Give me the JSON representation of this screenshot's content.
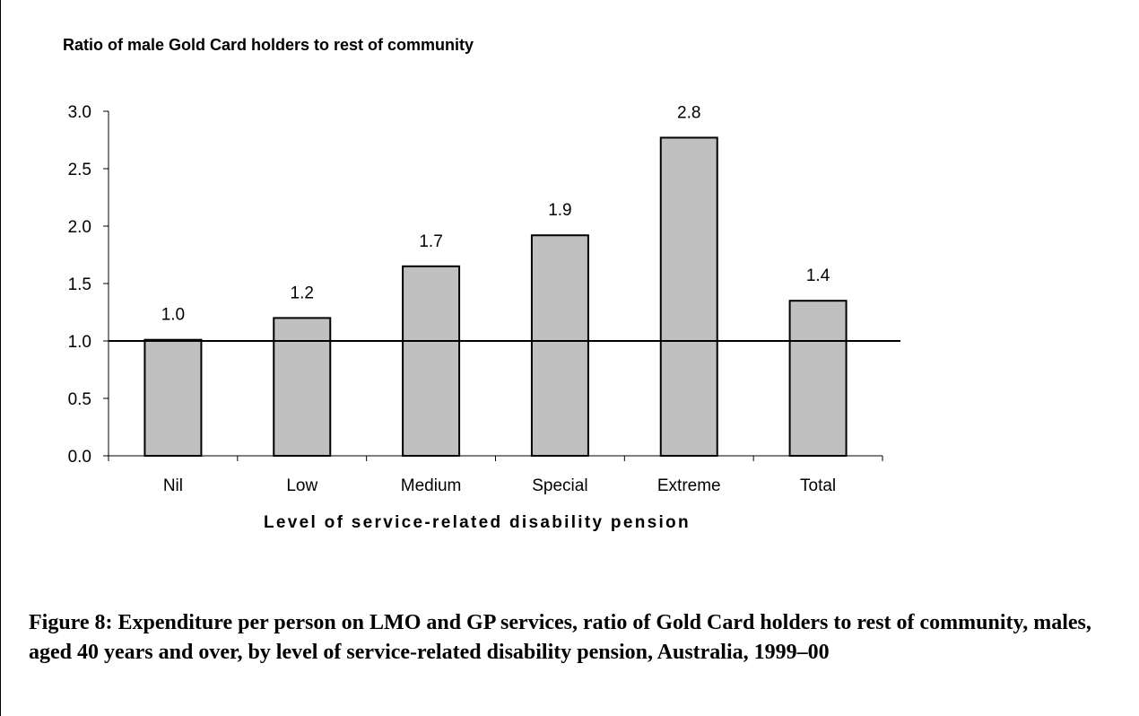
{
  "chart_data": {
    "type": "bar",
    "title": "Ratio of male Gold Card holders to rest of community",
    "xlabel": "Level of service-related disability pension",
    "ylabel": "",
    "categories": [
      "Nil",
      "Low",
      "Medium",
      "Special",
      "Extreme",
      "Total"
    ],
    "values": [
      1.01,
      1.2,
      1.65,
      1.92,
      2.77,
      1.35
    ],
    "data_labels": [
      "1.0",
      "1.2",
      "1.7",
      "1.9",
      "2.8",
      "1.4"
    ],
    "ylim": [
      0,
      3.0
    ],
    "yticks": [
      "0.0",
      "0.5",
      "1.0",
      "1.5",
      "2.0",
      "2.5",
      "3.0"
    ],
    "reference_line": 1.0,
    "grid": false,
    "bar_color": "#c0c0c0"
  },
  "caption": "Figure 8: Expenditure per person on LMO and GP services, ratio of Gold Card holders to rest of community, males, aged 40 years and over, by level of service-related disability pension, Australia, 1999–00"
}
